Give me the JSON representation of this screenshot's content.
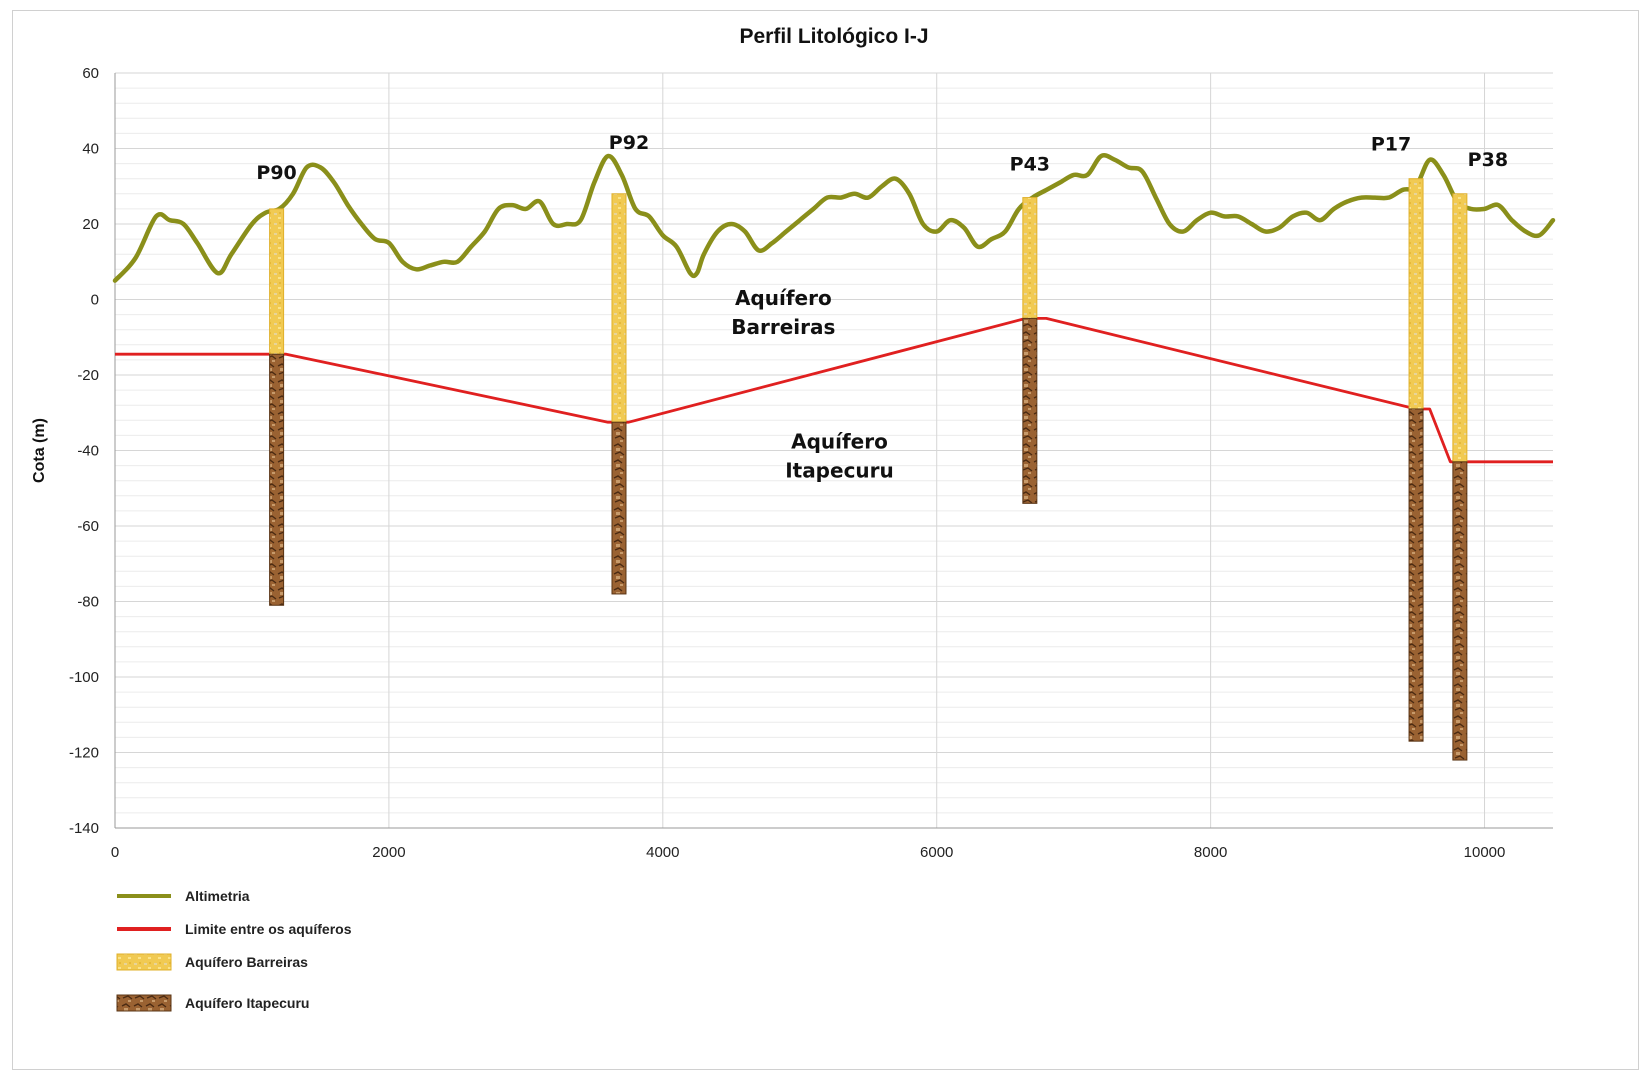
{
  "chart_data": {
    "type": "line",
    "title": "Perfil Litológico I-J",
    "xlabel": "",
    "ylabel": "Cota (m)",
    "xlim": [
      0,
      10500
    ],
    "ylim": [
      -140,
      60
    ],
    "x_ticks": [
      0,
      2000,
      4000,
      6000,
      8000,
      10000
    ],
    "y_ticks": [
      60,
      40,
      20,
      0,
      -20,
      -40,
      -60,
      -80,
      -100,
      -120,
      -140
    ],
    "grid": true,
    "legend_position": "bottom-left",
    "series": [
      {
        "name": "Altimetria",
        "color": "#8a8f1a",
        "points": [
          [
            0,
            5
          ],
          [
            150,
            11
          ],
          [
            300,
            22
          ],
          [
            400,
            21
          ],
          [
            500,
            20
          ],
          [
            600,
            15
          ],
          [
            750,
            7
          ],
          [
            850,
            12
          ],
          [
            1000,
            20
          ],
          [
            1100,
            23
          ],
          [
            1200,
            24
          ],
          [
            1300,
            28
          ],
          [
            1400,
            35
          ],
          [
            1500,
            35
          ],
          [
            1600,
            31
          ],
          [
            1700,
            25
          ],
          [
            1800,
            20
          ],
          [
            1900,
            16
          ],
          [
            2000,
            15
          ],
          [
            2100,
            10
          ],
          [
            2200,
            8
          ],
          [
            2300,
            9
          ],
          [
            2400,
            10
          ],
          [
            2500,
            10
          ],
          [
            2600,
            14
          ],
          [
            2700,
            18
          ],
          [
            2800,
            24
          ],
          [
            2900,
            25
          ],
          [
            3000,
            24
          ],
          [
            3100,
            26
          ],
          [
            3200,
            20
          ],
          [
            3300,
            20
          ],
          [
            3400,
            21
          ],
          [
            3500,
            31
          ],
          [
            3600,
            38
          ],
          [
            3700,
            33
          ],
          [
            3800,
            24
          ],
          [
            3900,
            22
          ],
          [
            4000,
            17
          ],
          [
            4100,
            14
          ],
          [
            4200,
            7
          ],
          [
            4250,
            7
          ],
          [
            4300,
            12
          ],
          [
            4400,
            18
          ],
          [
            4500,
            20
          ],
          [
            4600,
            18
          ],
          [
            4700,
            13
          ],
          [
            4800,
            15
          ],
          [
            4900,
            18
          ],
          [
            5000,
            21
          ],
          [
            5100,
            24
          ],
          [
            5200,
            27
          ],
          [
            5300,
            27
          ],
          [
            5400,
            28
          ],
          [
            5500,
            27
          ],
          [
            5600,
            30
          ],
          [
            5700,
            32
          ],
          [
            5800,
            28
          ],
          [
            5900,
            20
          ],
          [
            6000,
            18
          ],
          [
            6100,
            21
          ],
          [
            6200,
            19
          ],
          [
            6300,
            14
          ],
          [
            6400,
            16
          ],
          [
            6500,
            18
          ],
          [
            6600,
            24
          ],
          [
            6700,
            27
          ],
          [
            6800,
            29
          ],
          [
            6900,
            31
          ],
          [
            7000,
            33
          ],
          [
            7100,
            33
          ],
          [
            7200,
            38
          ],
          [
            7300,
            37
          ],
          [
            7400,
            35
          ],
          [
            7500,
            34
          ],
          [
            7600,
            27
          ],
          [
            7700,
            20
          ],
          [
            7800,
            18
          ],
          [
            7900,
            21
          ],
          [
            8000,
            23
          ],
          [
            8100,
            22
          ],
          [
            8200,
            22
          ],
          [
            8300,
            20
          ],
          [
            8400,
            18
          ],
          [
            8500,
            19
          ],
          [
            8600,
            22
          ],
          [
            8700,
            23
          ],
          [
            8800,
            21
          ],
          [
            8900,
            24
          ],
          [
            9000,
            26
          ],
          [
            9100,
            27
          ],
          [
            9200,
            27
          ],
          [
            9300,
            27
          ],
          [
            9400,
            29
          ],
          [
            9500,
            30
          ],
          [
            9600,
            37
          ],
          [
            9700,
            33
          ],
          [
            9800,
            26
          ],
          [
            9900,
            24
          ],
          [
            10000,
            24
          ],
          [
            10100,
            25
          ],
          [
            10200,
            21
          ],
          [
            10300,
            18
          ],
          [
            10400,
            17
          ],
          [
            10500,
            21
          ]
        ]
      },
      {
        "name": "Limite entre os aquíferos",
        "color": "#e02020",
        "points": [
          [
            0,
            -14.5
          ],
          [
            1150,
            -14.5
          ],
          [
            1250,
            -14.5
          ],
          [
            3600,
            -32.5
          ],
          [
            3750,
            -32.5
          ],
          [
            6650,
            -5
          ],
          [
            6800,
            -5
          ],
          [
            9500,
            -29
          ],
          [
            9600,
            -29
          ],
          [
            9750,
            -43
          ],
          [
            10500,
            -43
          ]
        ]
      }
    ],
    "wells": [
      {
        "name": "P90",
        "x": 1180,
        "top": 24,
        "interface": -14.5,
        "bottom": -81
      },
      {
        "name": "P92",
        "x": 3680,
        "top": 28,
        "interface": -32.5,
        "bottom": -78
      },
      {
        "name": "P43",
        "x": 6680,
        "top": 27,
        "interface": -5,
        "bottom": -54
      },
      {
        "name": "P17",
        "x": 9500,
        "top": 32,
        "interface": -29,
        "bottom": -117
      },
      {
        "name": "P38",
        "x": 9820,
        "top": 28,
        "interface": -43,
        "bottom": -122
      }
    ],
    "annotations": [
      {
        "name": "zone-barreiras",
        "lines": [
          "Aquífero",
          "Barreiras"
        ],
        "x": 4880,
        "y": -1.5
      },
      {
        "name": "zone-itapecuru",
        "lines": [
          "Aquífero",
          "Itapecuru"
        ],
        "x": 5290,
        "y": -39.5
      }
    ],
    "legend": [
      {
        "label": "Altimetria",
        "type": "line",
        "color": "#8a8f1a"
      },
      {
        "label": "Limite entre os aquíferos",
        "type": "line",
        "color": "#e02020"
      },
      {
        "label": "Aquífero Barreiras",
        "type": "patch",
        "color": "#f3cc4a"
      },
      {
        "label": "Aquífero Itapecuru",
        "type": "patch",
        "color": "#8b5a2b"
      }
    ]
  }
}
